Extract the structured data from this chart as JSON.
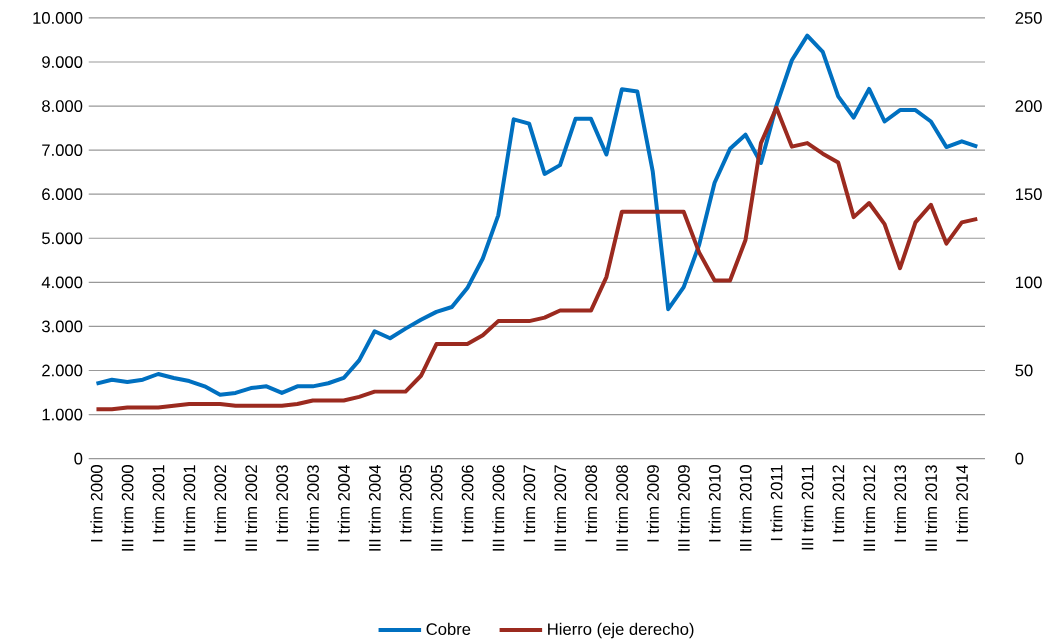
{
  "chart_data": {
    "type": "line",
    "categories": [
      "I trim 2000",
      null,
      "III trim 2000",
      null,
      "I trim 2001",
      null,
      "III trim 2001",
      null,
      "I trim 2002",
      null,
      "III trim 2002",
      null,
      "I trim 2003",
      null,
      "III trim 2003",
      null,
      "I trim 2004",
      null,
      "III trim 2004",
      null,
      "I trim 2005",
      null,
      "III trim 2005",
      null,
      "I trim 2006",
      null,
      "III trim 2006",
      null,
      "I trim 2007",
      null,
      "III trim 2007",
      null,
      "I trim 2008",
      null,
      "III trim 2008",
      null,
      "I trim 2009",
      null,
      "III trim 2009",
      null,
      "I trim 2010",
      null,
      "III trim 2010",
      null,
      "I trim 2011",
      null,
      "III trim 2011",
      null,
      "I trim 2012",
      null,
      "III trim 2012",
      null,
      "I trim 2013",
      null,
      "III trim 2013",
      null,
      "I trim 2014",
      null
    ],
    "series": [
      {
        "name": "Cobre",
        "color": "#0070c0",
        "values": [
          1700,
          1790,
          1740,
          1790,
          1920,
          1830,
          1760,
          1640,
          1450,
          1490,
          1600,
          1640,
          1490,
          1640,
          1640,
          1710,
          1830,
          2230,
          2890,
          2730,
          2950,
          3150,
          3330,
          3440,
          3870,
          4540,
          5520,
          7700,
          7600,
          6460,
          6660,
          7710,
          7710,
          6900,
          8380,
          8330,
          6510,
          3390,
          3890,
          4850,
          6260,
          7030,
          7350,
          6710,
          8010,
          9040,
          9600,
          9230,
          8220,
          7740,
          8390,
          7650,
          7910,
          7910,
          7650,
          7070,
          7200,
          7080
        ]
      },
      {
        "name": "Hierro (eje derecho)",
        "color": "#9b2a1f",
        "axis": "y2",
        "values": [
          28,
          28,
          29,
          29,
          29,
          30,
          31,
          31,
          31,
          30,
          30,
          30,
          30,
          31,
          33,
          33,
          33,
          35,
          38,
          38,
          38,
          47,
          65,
          65,
          65,
          70,
          78,
          78,
          78,
          80,
          84,
          84,
          84,
          103,
          140,
          140,
          140,
          140,
          140,
          117,
          101,
          101,
          124,
          179,
          199,
          177,
          179,
          173,
          168,
          137,
          145,
          133,
          108,
          134,
          144,
          122,
          134,
          136
        ]
      }
    ],
    "ylim": [
      0,
      10000
    ],
    "yticks": [
      0,
      {
        "value": 1000,
        "label": "1.000"
      },
      {
        "value": 2000,
        "label": "2.000"
      },
      {
        "value": 3000,
        "label": "3.000"
      },
      {
        "value": 4000,
        "label": "4.000"
      },
      {
        "value": 5000,
        "label": "5.000"
      },
      {
        "value": 6000,
        "label": "6.000"
      },
      {
        "value": 7000,
        "label": "7.000"
      },
      {
        "value": 8000,
        "label": "8.000"
      },
      {
        "value": 9000,
        "label": "9.000"
      },
      {
        "value": 10000,
        "label": "10.000"
      }
    ],
    "y2lim": [
      0,
      250
    ],
    "y2ticks": [
      0,
      50,
      100,
      150,
      200,
      250
    ],
    "grid": "y",
    "legend": "bottom",
    "marker": "none",
    "line_style": "solid"
  }
}
